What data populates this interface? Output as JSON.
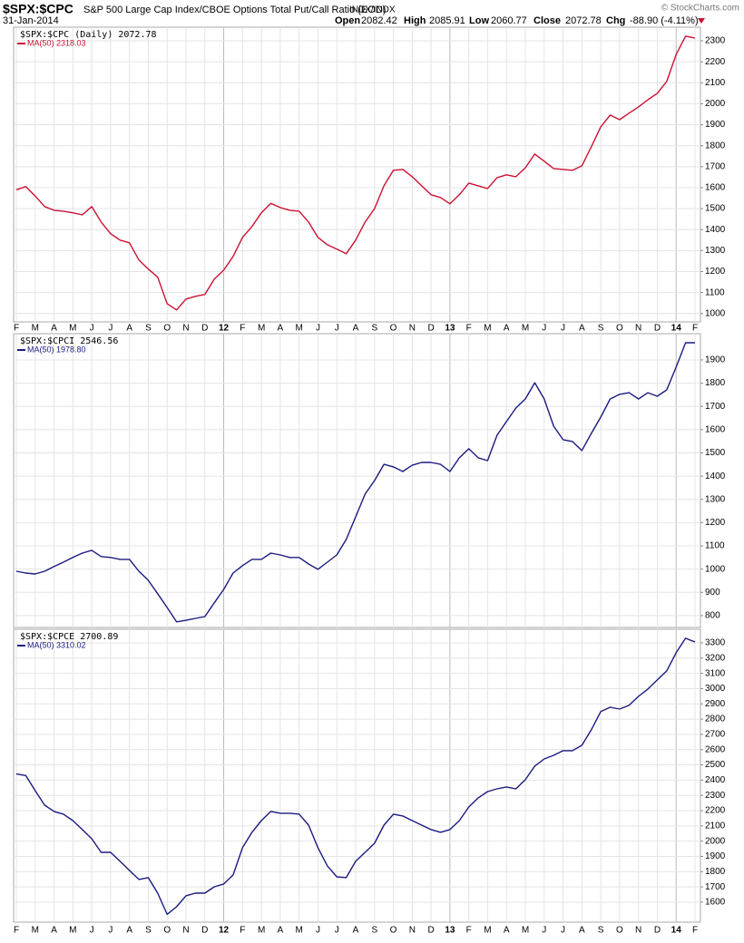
{
  "header": {
    "symbol": "$SPX:$CPC",
    "description": "S&P 500 Large Cap Index/CBOE Options Total Put/Call Ratio (EOD)",
    "exchange": "INDX/INDX",
    "copyright": "© StockCharts.com",
    "date": "31-Jan-2014",
    "open_label": "Open",
    "open": "2082.42",
    "high_label": "High",
    "high": "2085.91",
    "low_label": "Low",
    "low": "2060.77",
    "close_label": "Close",
    "close": "2072.78",
    "chg_label": "Chg",
    "chg": "-88.90 (-4.11%)"
  },
  "chart_data": [
    {
      "type": "line",
      "title": "$SPX:$CPC (Daily) 2072.78",
      "categories": [
        "F",
        null,
        "M",
        null,
        "A",
        null,
        "M",
        null,
        "J",
        null,
        "J",
        null,
        "A",
        null,
        "S",
        null,
        "O",
        null,
        "N",
        null,
        "D",
        null,
        "12",
        null,
        "F",
        null,
        "M",
        null,
        "A",
        null,
        "M",
        null,
        "J",
        null,
        "J",
        null,
        "A",
        null,
        "S",
        null,
        "O",
        null,
        "N",
        null,
        "D",
        null,
        "13",
        null,
        "F",
        null,
        "M",
        null,
        "A",
        null,
        "M",
        null,
        "J",
        null,
        "J",
        null,
        "A",
        null,
        "S",
        null,
        "O",
        null,
        "N",
        null,
        "D",
        null,
        "14",
        null,
        "F"
      ],
      "series": [
        {
          "name": "MA(50) 2318.03",
          "color": "#cc1133",
          "values": [
            1590,
            1605,
            1560,
            1510,
            1492,
            1488,
            1480,
            1470,
            1510,
            1436,
            1380,
            1350,
            1337,
            1255,
            1212,
            1173,
            1047,
            1017,
            1069,
            1082,
            1091,
            1164,
            1207,
            1272,
            1363,
            1415,
            1480,
            1525,
            1505,
            1492,
            1488,
            1436,
            1363,
            1328,
            1307,
            1285,
            1350,
            1436,
            1500,
            1609,
            1683,
            1687,
            1652,
            1609,
            1566,
            1553,
            1523,
            1566,
            1622,
            1609,
            1596,
            1648,
            1661,
            1652,
            1695,
            1760,
            1726,
            1691,
            1687,
            1683,
            1704,
            1795,
            1890,
            1946,
            1924,
            1955,
            1985,
            2019,
            2050,
            2106,
            2235,
            2322,
            2313
          ]
        }
      ],
      "ylim": [
        960,
        2365
      ],
      "yticks": [
        1000,
        1100,
        1200,
        1300,
        1400,
        1500,
        1600,
        1700,
        1800,
        1900,
        2000,
        2100,
        2200,
        2300
      ],
      "grid": true
    },
    {
      "type": "line",
      "title": "$SPX:$CPCI 2546.56",
      "series": [
        {
          "name": "MA(50) 1978.80",
          "color": "#1a1a80",
          "values": [
            991,
            983,
            979,
            991,
            1011,
            1030,
            1050,
            1069,
            1081,
            1054,
            1050,
            1042,
            1042,
            991,
            952,
            894,
            835,
            773,
            780,
            788,
            796,
            855,
            913,
            983,
            1015,
            1042,
            1042,
            1069,
            1061,
            1050,
            1050,
            1022,
            999,
            1030,
            1061,
            1128,
            1225,
            1323,
            1381,
            1451,
            1440,
            1420,
            1447,
            1459,
            1459,
            1451,
            1420,
            1479,
            1518,
            1479,
            1467,
            1576,
            1635,
            1693,
            1732,
            1802,
            1732,
            1615,
            1557,
            1549,
            1510,
            1584,
            1654,
            1732,
            1752,
            1759,
            1732,
            1759,
            1744,
            1771,
            1869,
            1974,
            1974
          ]
        }
      ],
      "ylim": [
        749,
        2013
      ],
      "yticks": [
        800,
        900,
        1000,
        1100,
        1200,
        1300,
        1400,
        1500,
        1600,
        1700,
        1800,
        1900
      ],
      "grid": true
    },
    {
      "type": "line",
      "title": "$SPX:$CPCE 2700.89",
      "categories": [
        "F",
        null,
        "M",
        null,
        "A",
        null,
        "M",
        null,
        "J",
        null,
        "J",
        null,
        "A",
        null,
        "S",
        null,
        "O",
        null,
        "N",
        null,
        "D",
        null,
        "12",
        null,
        "F",
        null,
        "M",
        null,
        "A",
        null,
        "M",
        null,
        "J",
        null,
        "J",
        null,
        "A",
        null,
        "S",
        null,
        "O",
        null,
        "N",
        null,
        "D",
        null,
        "13",
        null,
        "F",
        null,
        "M",
        null,
        "A",
        null,
        "M",
        null,
        "J",
        null,
        "J",
        null,
        "A",
        null,
        "S",
        null,
        "O",
        null,
        "N",
        null,
        "D",
        null,
        "14",
        null,
        "F"
      ],
      "series": [
        {
          "name": "MA(50) 3310.02",
          "color": "#1a1a80",
          "values": [
            2440,
            2430,
            2331,
            2236,
            2195,
            2177,
            2135,
            2076,
            2016,
            1927,
            1927,
            1868,
            1808,
            1749,
            1761,
            1659,
            1520,
            1570,
            1642,
            1659,
            1659,
            1701,
            1719,
            1778,
            1957,
            2058,
            2135,
            2195,
            2183,
            2183,
            2177,
            2105,
            1957,
            1838,
            1766,
            1761,
            1868,
            1927,
            1986,
            2105,
            2177,
            2165,
            2135,
            2105,
            2076,
            2058,
            2076,
            2135,
            2224,
            2284,
            2325,
            2343,
            2355,
            2343,
            2403,
            2492,
            2539,
            2563,
            2593,
            2593,
            2628,
            2730,
            2849,
            2878,
            2866,
            2890,
            2949,
            2997,
            3057,
            3116,
            3235,
            3330,
            3306
          ]
        }
      ],
      "ylim": [
        1469,
        3389
      ],
      "yticks": [
        1600,
        1700,
        1800,
        1900,
        2000,
        2100,
        2200,
        2300,
        2400,
        2500,
        2600,
        2700,
        2800,
        2900,
        3000,
        3100,
        3200,
        3300
      ],
      "grid": true
    }
  ]
}
